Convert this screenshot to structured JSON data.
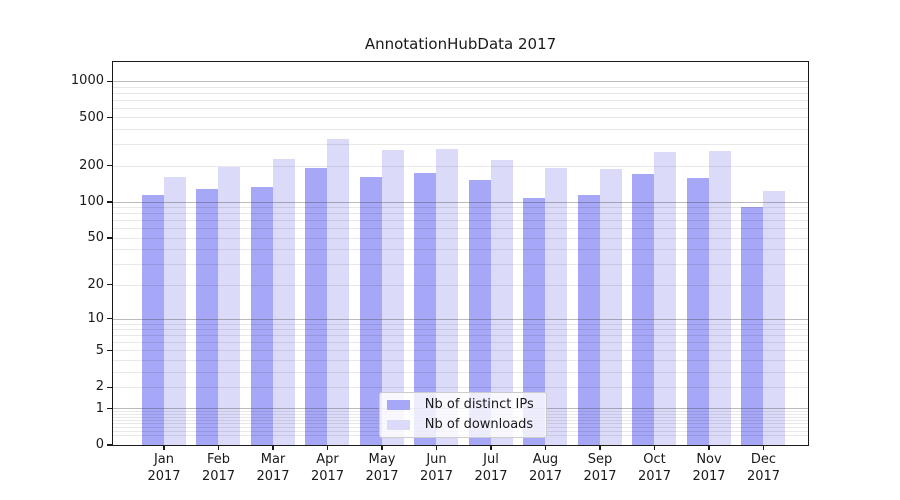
{
  "title": "AnnotationHubData 2017",
  "legend": {
    "items": [
      {
        "label": "Nb of distinct IPs",
        "color": "#a7a7f7"
      },
      {
        "label": "Nb of downloads",
        "color": "#dbdbf9"
      }
    ]
  },
  "chart_data": {
    "type": "bar",
    "title": "AnnotationHubData 2017",
    "categories": [
      "Jan 2017",
      "Feb 2017",
      "Mar 2017",
      "Apr 2017",
      "May 2017",
      "Jun 2017",
      "Jul 2017",
      "Aug 2017",
      "Sep 2017",
      "Oct 2017",
      "Nov 2017",
      "Dec 2017"
    ],
    "series": [
      {
        "name": "Nb of distinct IPs",
        "color": "#a7a7f7",
        "values": [
          113,
          127,
          133,
          190,
          160,
          172,
          153,
          108,
          115,
          169,
          157,
          91
        ]
      },
      {
        "name": "Nb of downloads",
        "color": "#dbdbf9",
        "values": [
          162,
          195,
          228,
          333,
          268,
          276,
          223,
          191,
          186,
          257,
          265,
          122
        ]
      }
    ],
    "yscale": "log1p",
    "yticks": [
      0,
      1,
      2,
      5,
      10,
      20,
      50,
      100,
      200,
      500,
      1000
    ],
    "ylim": [
      0,
      1428
    ],
    "xlabel": "",
    "ylabel": "",
    "grid": true,
    "grid_on_top": true,
    "legend_position": "lower center"
  },
  "colors": {
    "background": "#ffffff",
    "spine": "#1a1a1a",
    "grid_major": "#b4b4b4",
    "grid_minor": "#e8e8e8",
    "text": "#1a1a1a"
  }
}
